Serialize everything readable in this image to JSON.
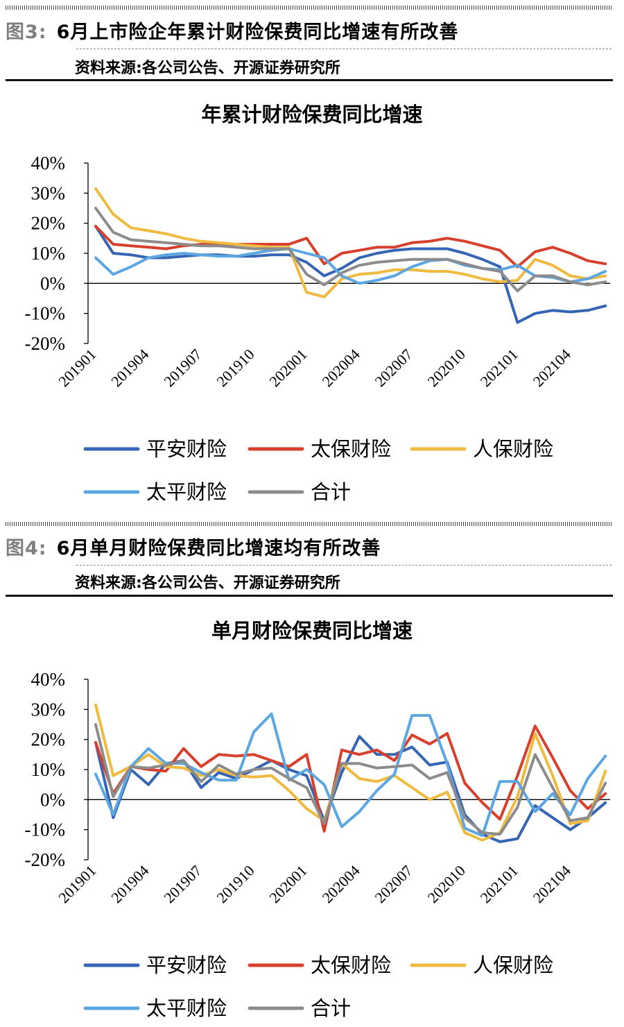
{
  "figures": [
    {
      "label": "图3:",
      "heading": "6月上市险企年累计财险保费同比增速有所改善",
      "source": "资料来源:各公司公告、开源证券研究所"
    },
    {
      "label": "图4:",
      "heading": "6月单月财险保费同比增速均有所改善",
      "source": "资料来源:各公司公告、开源证券研究所"
    }
  ],
  "chart_data": [
    {
      "type": "line",
      "title": "年累计财险保费同比增速",
      "xlabel": "",
      "ylabel": "",
      "ylim": [
        -20,
        40
      ],
      "yticks": [
        "40%",
        "30%",
        "20%",
        "10%",
        "0%",
        "-10%",
        "-20%"
      ],
      "x_tick_labels": [
        "201901",
        "201904",
        "201907",
        "201910",
        "202001",
        "202004",
        "202007",
        "202010",
        "202101",
        "202104"
      ],
      "legend_position": "bottom",
      "categories": [
        "201901",
        "201902",
        "201903",
        "201904",
        "201905",
        "201906",
        "201907",
        "201908",
        "201909",
        "201910",
        "201911",
        "201912",
        "202001",
        "202002",
        "202003",
        "202004",
        "202005",
        "202006",
        "202007",
        "202008",
        "202009",
        "202010",
        "202011",
        "202012",
        "202101",
        "202102",
        "202103",
        "202104",
        "202105",
        "202106"
      ],
      "series": [
        {
          "name": "平安财险",
          "color": "#3565b3",
          "values": [
            19,
            10,
            9.5,
            8.5,
            8.5,
            9,
            9.5,
            9.5,
            9,
            9,
            9.5,
            9.5,
            7,
            2.5,
            5,
            8.5,
            10,
            11,
            11.5,
            11.5,
            11.5,
            10,
            8,
            5.5,
            -13,
            -10,
            -9,
            -9.5,
            -9,
            -7.5
          ]
        },
        {
          "name": "太保财险",
          "color": "#d8402e",
          "values": [
            19,
            13,
            12.5,
            12,
            11.5,
            12.5,
            13,
            13,
            13,
            13,
            13,
            13,
            15,
            6.5,
            10,
            11,
            12,
            12,
            13.5,
            14,
            15,
            14,
            12.5,
            11,
            5.5,
            10.5,
            12,
            10,
            7.5,
            6.5
          ]
        },
        {
          "name": "人保财险",
          "color": "#efba40",
          "values": [
            31.5,
            23,
            18.5,
            17.5,
            16.5,
            15,
            14,
            13.5,
            13,
            12.5,
            12,
            12,
            -3,
            -4.5,
            1.5,
            3,
            3.5,
            4.5,
            4.5,
            4,
            4,
            3,
            1.5,
            0.5,
            1,
            8,
            6,
            2.5,
            1.5,
            2.5
          ]
        },
        {
          "name": "太平财险",
          "color": "#5ca6e1",
          "values": [
            8.5,
            3,
            5.5,
            8.5,
            9.5,
            10,
            9.5,
            9,
            9,
            10,
            11,
            11.5,
            10,
            8.5,
            2.5,
            0,
            1,
            2.5,
            5.5,
            7.5,
            8,
            6,
            5,
            4.5,
            6,
            2.5,
            2,
            0.5,
            1.5,
            4
          ]
        },
        {
          "name": "合计",
          "color": "#8c8c8c",
          "values": [
            25,
            17,
            14.5,
            14,
            13.5,
            13,
            12.5,
            12.5,
            12,
            11.5,
            11.5,
            11.5,
            3,
            -0.5,
            3.5,
            6,
            7,
            7.5,
            8,
            8,
            8,
            6.5,
            5,
            4,
            -2.5,
            2.5,
            2.5,
            0.5,
            -0.5,
            0.5
          ]
        }
      ]
    },
    {
      "type": "line",
      "title": "单月财险保费同比增速",
      "xlabel": "",
      "ylabel": "",
      "ylim": [
        -20,
        40
      ],
      "yticks": [
        "40%",
        "30%",
        "20%",
        "10%",
        "0%",
        "-10%",
        "-20%"
      ],
      "x_tick_labels": [
        "201901",
        "201904",
        "201907",
        "201910",
        "202001",
        "202004",
        "202007",
        "202010",
        "202101",
        "202104"
      ],
      "legend_position": "bottom",
      "categories": [
        "201901",
        "201902",
        "201903",
        "201904",
        "201905",
        "201906",
        "201907",
        "201908",
        "201909",
        "201910",
        "201911",
        "201912",
        "202001",
        "202002",
        "202003",
        "202004",
        "202005",
        "202006",
        "202007",
        "202008",
        "202009",
        "202010",
        "202011",
        "202012",
        "202101",
        "202102",
        "202103",
        "202104",
        "202105",
        "202106"
      ],
      "series": [
        {
          "name": "平安财险",
          "color": "#3565b3",
          "values": [
            19,
            -6,
            10,
            5,
            12,
            13,
            4,
            9,
            7,
            10,
            13,
            10,
            8,
            -7,
            9,
            21,
            15,
            15,
            17.5,
            11.5,
            12.5,
            -5,
            -11.5,
            -14,
            -13,
            -2,
            -6,
            -10,
            -6,
            -1
          ]
        },
        {
          "name": "太保财险",
          "color": "#d8402e",
          "values": [
            19,
            2,
            11,
            10,
            9.5,
            17,
            11,
            15,
            14.5,
            15,
            13,
            11,
            15,
            -10.5,
            16.5,
            15,
            16.5,
            13,
            21.5,
            18.5,
            22,
            5.5,
            -1,
            -6.5,
            8,
            24.5,
            14,
            3,
            -3,
            2
          ]
        },
        {
          "name": "人保财险",
          "color": "#efba40",
          "values": [
            31.5,
            8,
            11,
            15,
            11,
            10.5,
            8,
            10,
            8,
            7.5,
            8,
            3,
            -3,
            -7,
            12,
            7,
            6,
            8,
            4,
            0,
            2.5,
            -11,
            -13.5,
            -11,
            1,
            22,
            8,
            -8,
            -7,
            9.5
          ]
        },
        {
          "name": "太平财险",
          "color": "#5ca6e1",
          "values": [
            8.5,
            -5,
            11,
            17,
            12,
            12,
            9,
            6.5,
            6.5,
            22.5,
            28.5,
            6.5,
            10,
            5,
            -9,
            -4,
            3,
            8.5,
            28,
            28,
            12,
            -9.5,
            -12,
            6,
            6,
            -4,
            2,
            -5,
            7,
            14.5
          ]
        },
        {
          "name": "合计",
          "color": "#8c8c8c",
          "values": [
            25,
            1,
            11,
            10.5,
            11.5,
            13,
            6,
            11.5,
            8.5,
            10,
            10.5,
            7,
            4,
            -8,
            12,
            12,
            10.5,
            11,
            11.5,
            7,
            9,
            -6,
            -11,
            -11.5,
            -2.5,
            15,
            4,
            -7,
            -6,
            5.5
          ]
        }
      ]
    }
  ]
}
